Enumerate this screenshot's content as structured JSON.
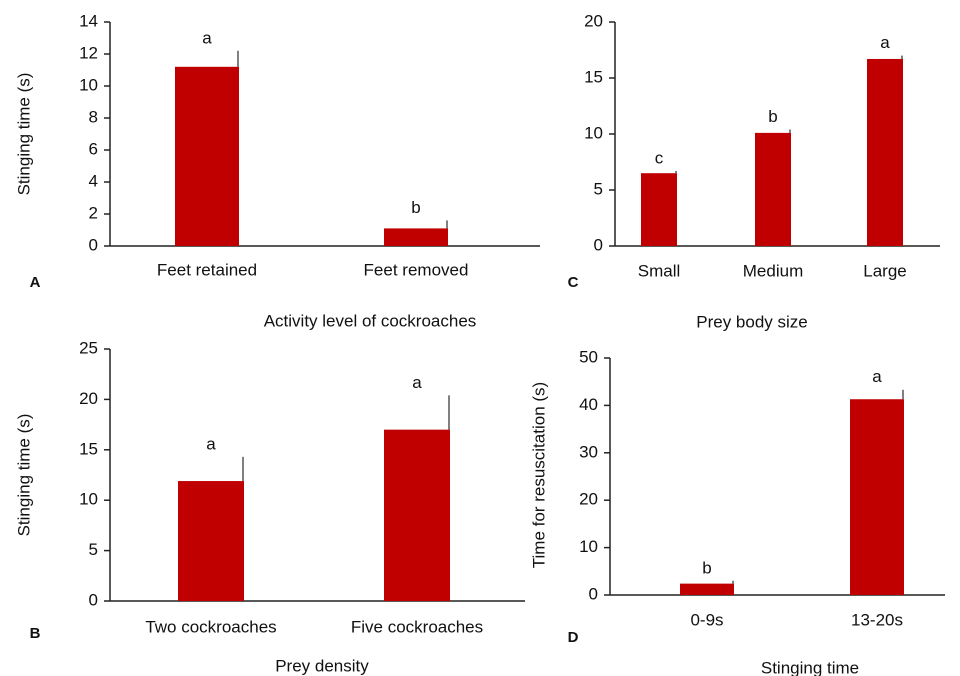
{
  "chart_data": [
    {
      "type": "bar",
      "panel": "A",
      "ylabel": "Stinging time (s)",
      "xlabel": "Activity level of cockroaches",
      "categories": [
        "Feet retained",
        "Feet removed"
      ],
      "values": [
        11.2,
        1.1
      ],
      "errors": [
        1.0,
        0.5
      ],
      "annotations": [
        "a",
        "b"
      ],
      "color": "#c00000",
      "ylim": [
        0,
        14
      ],
      "yticks": [
        0,
        2,
        4,
        6,
        8,
        10,
        12,
        14
      ]
    },
    {
      "type": "bar",
      "panel": "B",
      "ylabel": "Stinging time (s)",
      "xlabel": "Prey density",
      "categories": [
        "Two cockroaches",
        "Five cockroaches"
      ],
      "values": [
        11.9,
        17.0
      ],
      "errors": [
        2.4,
        3.4
      ],
      "annotations": [
        "a",
        "a"
      ],
      "color": "#c00000",
      "ylim": [
        0,
        25
      ],
      "yticks": [
        0,
        5,
        10,
        15,
        20,
        25
      ]
    },
    {
      "type": "bar",
      "panel": "C",
      "xlabel": "Prey body size",
      "categories": [
        "Small",
        "Medium",
        "Large"
      ],
      "values": [
        6.5,
        10.1,
        16.7
      ],
      "errors": [
        0.2,
        0.3,
        0.3
      ],
      "annotations": [
        "c",
        "b",
        "a"
      ],
      "color": "#c00000",
      "ylim": [
        0,
        20
      ],
      "yticks": [
        0,
        5,
        10,
        15,
        20
      ]
    },
    {
      "type": "bar",
      "panel": "D",
      "ylabel": "Time for resuscitation (s)",
      "xlabel": "Stinging time",
      "categories": [
        "0-9s",
        "13-20s"
      ],
      "values": [
        2.4,
        41.3
      ],
      "errors": [
        0.6,
        2.0
      ],
      "annotations": [
        "b",
        "a"
      ],
      "color": "#c00000",
      "ylim": [
        0,
        50
      ],
      "yticks": [
        0,
        10,
        20,
        30,
        40,
        50
      ]
    }
  ]
}
